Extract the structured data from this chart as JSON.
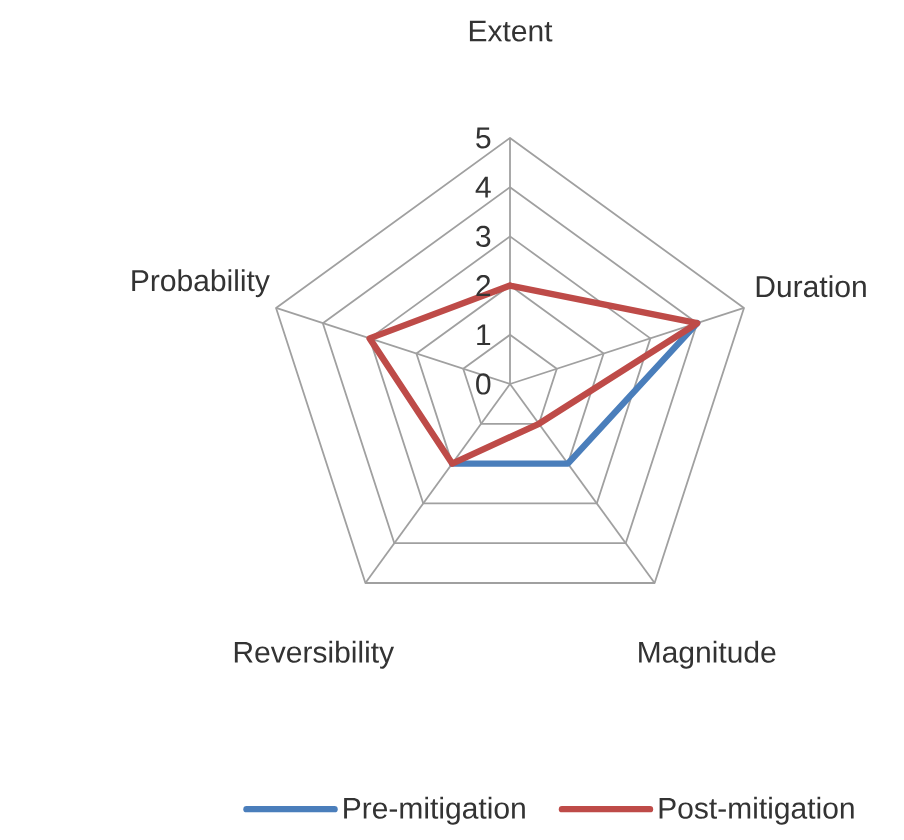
{
  "chart_data": {
    "type": "radar",
    "categories": [
      "Extent",
      "Duration",
      "Magnitude",
      "Reversibility",
      "Probability"
    ],
    "series": [
      {
        "name": "Pre-mitigation",
        "color": "#4a7ebb",
        "values": [
          null,
          4,
          2,
          2,
          null
        ]
      },
      {
        "name": "Post-mitigation",
        "color": "#be4b48",
        "values": [
          2,
          4,
          1,
          2,
          3
        ]
      }
    ],
    "ylim": [
      0,
      5
    ],
    "yticks": [
      0,
      1,
      2,
      3,
      4,
      5
    ],
    "grid": true,
    "legend": "bottom"
  }
}
